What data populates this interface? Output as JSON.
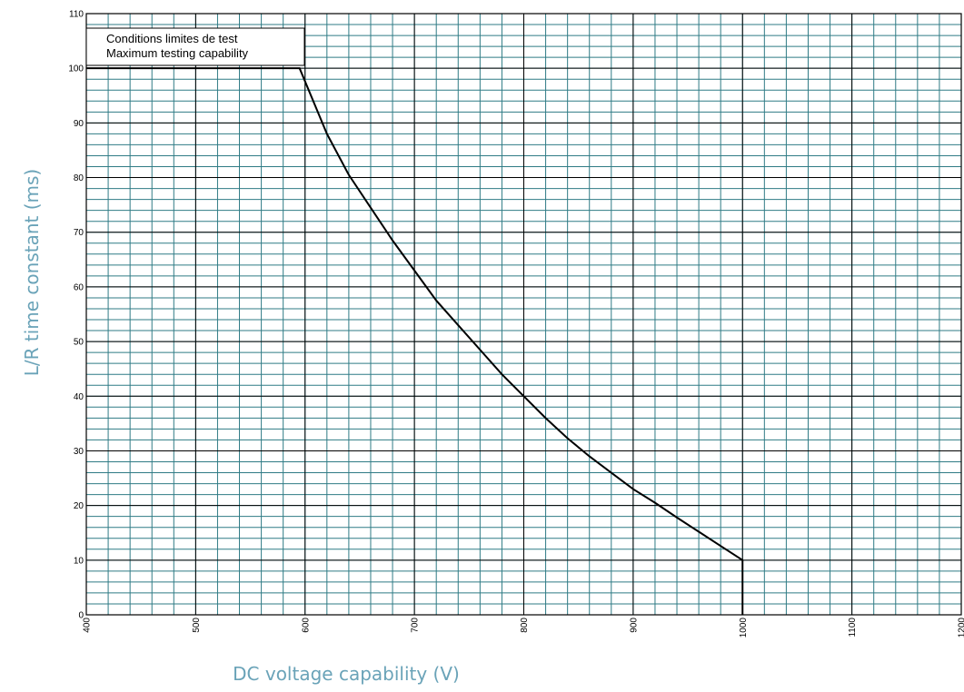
{
  "chart_data": {
    "type": "line",
    "title": "",
    "xlabel": "DC voltage capability (V)",
    "ylabel": "L/R time constant (ms)",
    "xlim": [
      400,
      1200
    ],
    "ylim": [
      0,
      110
    ],
    "x_major_step": 100,
    "x_minor_step": 20,
    "y_major_step": 10,
    "y_minor_step": 2,
    "x_ticks": [
      "400",
      "500",
      "600",
      "700",
      "800",
      "900",
      "1000",
      "1100",
      "1200"
    ],
    "y_ticks": [
      "0",
      "10",
      "20",
      "30",
      "40",
      "50",
      "60",
      "70",
      "80",
      "90",
      "100",
      "110"
    ],
    "grid": true,
    "legend": {
      "position": "top-left",
      "lines": [
        "Conditions limites de test",
        "Maximum testing capability"
      ]
    },
    "series": [
      {
        "name": "",
        "x": [
          400,
          595,
          620,
          640,
          660,
          680,
          700,
          720,
          740,
          760,
          780,
          800,
          820,
          840,
          860,
          880,
          900,
          920,
          940,
          960,
          980,
          1000,
          1000
        ],
        "y": [
          100,
          100,
          88,
          80.5,
          74.5,
          68.5,
          63,
          57.5,
          53,
          48.5,
          44,
          40,
          36,
          32.3,
          29,
          26,
          23,
          20.5,
          17.8,
          15.2,
          12.6,
          10,
          0
        ]
      }
    ],
    "colors": {
      "minor_grid": "#2f7b85",
      "major_grid": "#000000",
      "curve": "#000000",
      "axis_title": "#6aa3b8"
    }
  }
}
